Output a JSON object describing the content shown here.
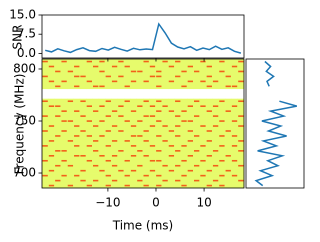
{
  "chart_data": {
    "type": "waterfall",
    "snr_label": "SNR",
    "xlabel": "Time (ms)",
    "ylabel": "Frequency (MHz)",
    "line_color": "#1f77b4",
    "low_color": "#e6fb6c",
    "high_color": "#f2611a",
    "xlim": [
      -23.7,
      18.3
    ],
    "xticks": [
      {
        "value": -10,
        "label": "−10"
      },
      0,
      10
    ],
    "ylim": [
      685.6,
      809.6
    ],
    "yticks": [
      700,
      750,
      800
    ],
    "snr_ylim": [
      -1.8,
      15
    ],
    "snr_yticks": [
      {
        "value": 0,
        "label": "0.0"
      },
      {
        "value": 7.5,
        "label": "7.5"
      },
      {
        "value": 15,
        "label": "15.0"
      }
    ],
    "spectrum_xlim": [
      -2,
      6
    ],
    "time": [
      -23.04,
      -21.73,
      -20.42,
      -19.1,
      -17.79,
      -16.48,
      -15.17,
      -13.85,
      -12.54,
      -11.23,
      -9.92,
      -8.6,
      -7.29,
      -5.98,
      -4.67,
      -3.35,
      -2.04,
      -0.73,
      0.58,
      1.9,
      3.21,
      4.52,
      5.83,
      7.15,
      8.46,
      9.77,
      11.08,
      12.4,
      13.71,
      15.02,
      16.33,
      17.65
    ],
    "snr": [
      1.2,
      0.6,
      1.8,
      1.0,
      0.4,
      1.5,
      2.2,
      1.1,
      0.8,
      1.9,
      1.3,
      2.4,
      1.6,
      0.9,
      2.0,
      1.4,
      1.7,
      1.5,
      11.5,
      8.0,
      4.0,
      2.5,
      1.8,
      2.6,
      1.2,
      2.1,
      1.5,
      2.8,
      1.6,
      2.2,
      0.8,
      0.1
    ],
    "channels": [
      807.2,
      802.4,
      797.7,
      792.9,
      788.1,
      783.4,
      778.6,
      773.8,
      769.0,
      764.3,
      759.5,
      754.7,
      750.0,
      745.2,
      740.4,
      735.6,
      730.9,
      726.1,
      721.3,
      716.6,
      711.8,
      707.0,
      702.2,
      697.5,
      692.7,
      687.9
    ],
    "spectrum": [
      0.6,
      1.4,
      0.8,
      1.8,
      0.9,
      1.2,
      null,
      null,
      2.6,
      5.0,
      1.4,
      3.2,
      0.2,
      2.8,
      1.1,
      3.6,
      0.4,
      2.2,
      -0.4,
      3.0,
      1.0,
      2.4,
      0.0,
      1.6,
      -0.6,
      0.3
    ],
    "waterfall": [
      [
        1,
        0,
        0,
        1,
        0,
        0,
        0,
        1,
        0,
        1,
        0,
        0,
        1,
        0,
        0,
        0,
        1,
        0,
        0,
        1,
        0,
        1,
        0,
        0,
        0,
        1,
        0,
        0,
        1,
        0,
        0,
        1
      ],
      [
        0,
        1,
        0,
        0,
        0,
        1,
        0,
        0,
        1,
        0,
        0,
        1,
        0,
        1,
        0,
        0,
        0,
        1,
        0,
        0,
        1,
        0,
        0,
        1,
        0,
        0,
        1,
        0,
        0,
        0,
        1,
        0
      ],
      [
        0,
        0,
        1,
        0,
        1,
        0,
        0,
        0,
        0,
        1,
        0,
        0,
        0,
        0,
        1,
        1,
        0,
        0,
        1,
        0,
        0,
        0,
        1,
        0,
        1,
        0,
        0,
        0,
        1,
        0,
        0,
        1
      ],
      [
        1,
        0,
        0,
        0,
        0,
        1,
        1,
        0,
        0,
        0,
        1,
        0,
        1,
        0,
        0,
        0,
        0,
        1,
        1,
        0,
        0,
        1,
        0,
        0,
        0,
        0,
        1,
        0,
        0,
        1,
        0,
        0
      ],
      [
        0,
        1,
        0,
        1,
        0,
        0,
        0,
        1,
        0,
        0,
        0,
        1,
        0,
        0,
        1,
        0,
        1,
        0,
        0,
        0,
        1,
        0,
        0,
        1,
        0,
        1,
        0,
        1,
        0,
        0,
        0,
        1
      ],
      [
        0,
        0,
        1,
        0,
        0,
        1,
        0,
        0,
        1,
        1,
        0,
        0,
        0,
        1,
        0,
        0,
        0,
        0,
        1,
        0,
        0,
        0,
        1,
        0,
        0,
        0,
        1,
        0,
        0,
        1,
        1,
        0
      ],
      [
        null,
        null,
        null,
        null,
        null,
        null,
        null,
        null,
        null,
        null,
        null,
        null,
        null,
        null,
        null,
        null,
        null,
        null,
        null,
        null,
        null,
        null,
        null,
        null,
        null,
        null,
        null,
        null,
        null,
        null,
        null,
        null
      ],
      [
        null,
        null,
        null,
        null,
        null,
        null,
        null,
        null,
        null,
        null,
        null,
        null,
        null,
        null,
        null,
        null,
        null,
        null,
        null,
        null,
        null,
        null,
        null,
        null,
        null,
        null,
        null,
        null,
        null,
        null,
        null,
        null
      ],
      [
        1,
        0,
        0,
        0,
        1,
        0,
        1,
        0,
        0,
        0,
        1,
        0,
        0,
        1,
        0,
        0,
        1,
        0,
        1,
        0,
        0,
        1,
        0,
        0,
        1,
        0,
        0,
        0,
        1,
        0,
        0,
        1
      ],
      [
        0,
        1,
        1,
        0,
        0,
        0,
        0,
        1,
        0,
        1,
        0,
        0,
        1,
        0,
        0,
        1,
        0,
        1,
        0,
        1,
        0,
        0,
        0,
        1,
        0,
        1,
        0,
        1,
        0,
        0,
        1,
        0
      ],
      [
        0,
        0,
        0,
        1,
        0,
        1,
        0,
        0,
        1,
        0,
        0,
        1,
        0,
        0,
        1,
        0,
        0,
        0,
        1,
        0,
        1,
        0,
        1,
        0,
        0,
        0,
        1,
        0,
        0,
        1,
        0,
        0
      ],
      [
        1,
        0,
        1,
        0,
        0,
        0,
        1,
        0,
        0,
        0,
        1,
        0,
        1,
        0,
        0,
        0,
        1,
        1,
        0,
        0,
        0,
        1,
        0,
        0,
        1,
        0,
        0,
        1,
        0,
        0,
        0,
        1
      ],
      [
        0,
        0,
        0,
        1,
        1,
        0,
        0,
        1,
        0,
        1,
        0,
        0,
        0,
        1,
        0,
        1,
        0,
        0,
        1,
        0,
        0,
        0,
        1,
        1,
        0,
        0,
        0,
        0,
        1,
        0,
        1,
        0
      ],
      [
        0,
        1,
        0,
        0,
        0,
        1,
        0,
        0,
        1,
        0,
        0,
        1,
        0,
        0,
        1,
        0,
        0,
        1,
        0,
        1,
        0,
        1,
        0,
        0,
        0,
        1,
        0,
        1,
        0,
        0,
        0,
        1
      ],
      [
        1,
        0,
        0,
        1,
        0,
        0,
        1,
        0,
        0,
        0,
        1,
        0,
        1,
        0,
        0,
        0,
        1,
        0,
        0,
        0,
        1,
        0,
        0,
        1,
        0,
        0,
        1,
        0,
        0,
        1,
        0,
        0
      ],
      [
        0,
        0,
        1,
        0,
        0,
        1,
        0,
        1,
        0,
        1,
        0,
        0,
        0,
        0,
        1,
        1,
        0,
        0,
        1,
        0,
        0,
        1,
        0,
        0,
        1,
        0,
        0,
        0,
        1,
        0,
        1,
        0
      ],
      [
        0,
        1,
        0,
        0,
        1,
        0,
        0,
        0,
        1,
        0,
        0,
        1,
        0,
        1,
        0,
        0,
        1,
        0,
        0,
        1,
        0,
        0,
        0,
        1,
        0,
        0,
        1,
        0,
        0,
        0,
        0,
        1
      ],
      [
        1,
        0,
        0,
        0,
        0,
        1,
        0,
        1,
        0,
        0,
        1,
        0,
        0,
        0,
        1,
        0,
        0,
        1,
        0,
        0,
        1,
        0,
        1,
        0,
        0,
        1,
        0,
        0,
        1,
        0,
        1,
        0
      ],
      [
        0,
        0,
        1,
        1,
        0,
        0,
        0,
        0,
        1,
        0,
        0,
        0,
        1,
        0,
        0,
        1,
        0,
        0,
        1,
        0,
        0,
        1,
        0,
        0,
        1,
        0,
        0,
        1,
        0,
        0,
        0,
        1
      ],
      [
        0,
        1,
        0,
        0,
        0,
        1,
        1,
        0,
        0,
        1,
        0,
        1,
        0,
        0,
        1,
        0,
        1,
        0,
        0,
        0,
        1,
        0,
        0,
        1,
        0,
        0,
        1,
        0,
        0,
        1,
        0,
        0
      ],
      [
        1,
        0,
        0,
        1,
        0,
        0,
        0,
        1,
        0,
        0,
        1,
        0,
        0,
        1,
        0,
        0,
        0,
        1,
        1,
        0,
        0,
        0,
        1,
        0,
        0,
        1,
        0,
        0,
        1,
        0,
        1,
        0
      ],
      [
        0,
        0,
        1,
        0,
        1,
        0,
        0,
        0,
        1,
        0,
        0,
        1,
        0,
        0,
        0,
        1,
        0,
        0,
        0,
        1,
        0,
        1,
        0,
        0,
        1,
        0,
        0,
        1,
        0,
        0,
        0,
        1
      ],
      [
        0,
        1,
        0,
        0,
        0,
        0,
        1,
        0,
        0,
        1,
        0,
        0,
        1,
        0,
        1,
        0,
        0,
        1,
        0,
        0,
        1,
        0,
        0,
        1,
        0,
        0,
        1,
        0,
        0,
        1,
        0,
        0
      ],
      [
        1,
        0,
        0,
        1,
        0,
        1,
        0,
        0,
        0,
        0,
        1,
        0,
        0,
        1,
        0,
        0,
        1,
        0,
        1,
        0,
        0,
        0,
        1,
        0,
        0,
        1,
        0,
        0,
        1,
        0,
        1,
        0
      ],
      [
        0,
        0,
        1,
        0,
        0,
        0,
        1,
        0,
        1,
        0,
        0,
        1,
        0,
        0,
        0,
        1,
        0,
        0,
        0,
        1,
        0,
        1,
        0,
        0,
        1,
        0,
        0,
        1,
        0,
        0,
        0,
        1
      ],
      [
        0,
        1,
        0,
        0,
        1,
        0,
        0,
        1,
        0,
        0,
        1,
        0,
        0,
        1,
        0,
        0,
        1,
        0,
        1,
        0,
        0,
        0,
        1,
        0,
        0,
        0,
        1,
        0,
        1,
        0,
        0,
        0
      ]
    ]
  }
}
